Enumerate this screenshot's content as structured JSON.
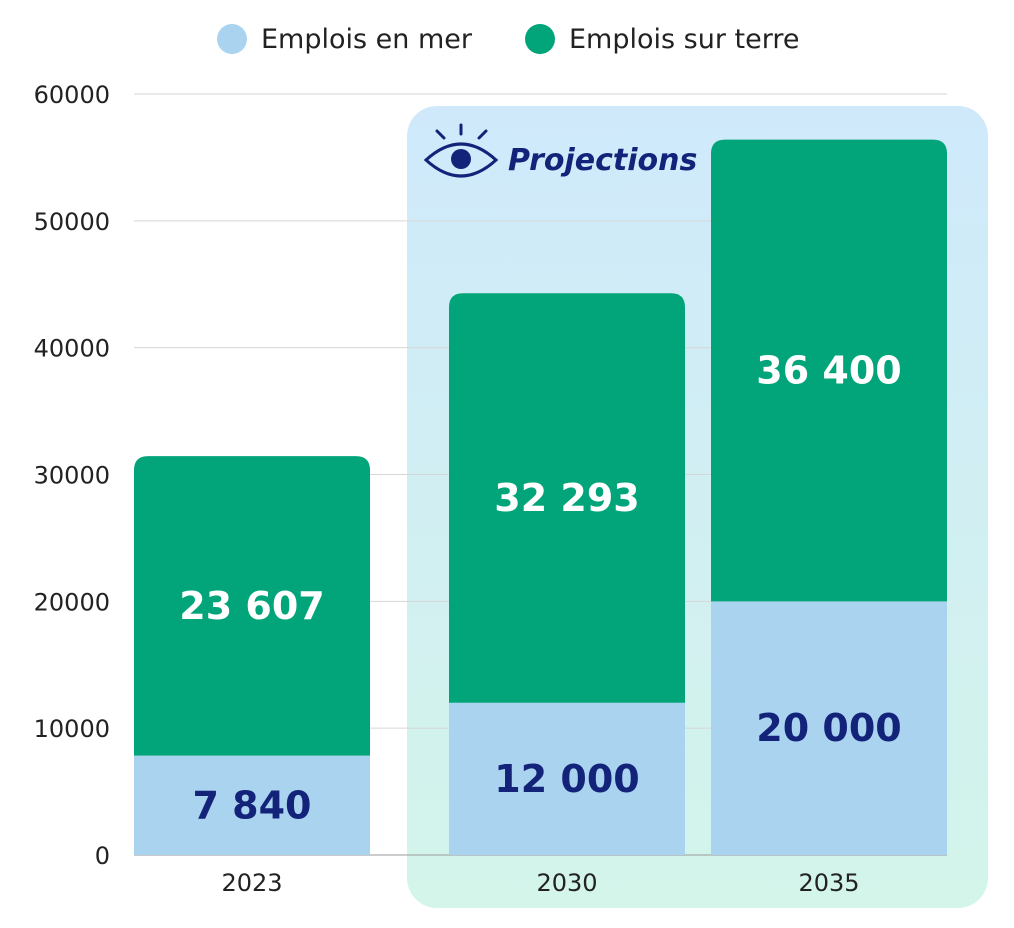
{
  "chart_data": {
    "type": "bar",
    "stacked": true,
    "title": "",
    "xlabel": "",
    "ylabel": "",
    "categories": [
      "2023",
      "2030",
      "2035"
    ],
    "series": [
      {
        "name": "Emplois en mer",
        "values": [
          7840,
          12000,
          20000
        ],
        "labels": [
          "7 840",
          "12 000",
          "20 000"
        ],
        "color": "#a9d3ef",
        "label_color": "#14237a"
      },
      {
        "name": "Emplois sur terre",
        "values": [
          23607,
          32293,
          36400
        ],
        "labels": [
          "23 607",
          "32 293",
          "36 400"
        ],
        "color": "#02a57a",
        "label_color": "#ffffff"
      }
    ],
    "ylim": [
      0,
      60000
    ],
    "yticks": [
      "0",
      "10000",
      "20000",
      "30000",
      "40000",
      "50000",
      "60000"
    ],
    "grid": true,
    "legend": "top-center",
    "annotation": {
      "text": "Projections",
      "categories": [
        "2030",
        "2035"
      ],
      "icon": "eye-icon"
    }
  }
}
